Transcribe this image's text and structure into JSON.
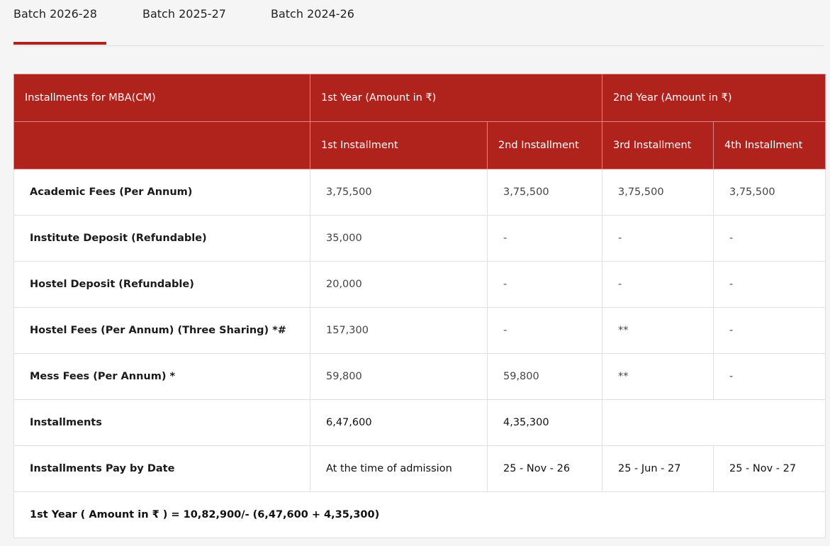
{
  "tabs": [
    {
      "label": "Batch 2026-28",
      "active": true
    },
    {
      "label": "Batch 2025-27"
    },
    {
      "label": "Batch 2024-26"
    }
  ],
  "accent": "#b0231d",
  "table": {
    "corner": "Installments for MBA(CM)",
    "year1": "1st Year (Amount in ₹)",
    "year2": "2nd Year (Amount in ₹)",
    "installments": [
      "1st Installment",
      "2nd Installment",
      "3rd Installment",
      "4th Installment"
    ],
    "rows": [
      {
        "label": "Academic Fees (Per Annum)",
        "values": [
          "3,75,500",
          "3,75,500",
          "3,75,500",
          "3,75,500"
        ]
      },
      {
        "label": "Institute Deposit (Refundable)",
        "values": [
          "35,000",
          "-",
          "-",
          "-"
        ]
      },
      {
        "label": "Hostel Deposit (Refundable)",
        "values": [
          "20,000",
          "-",
          "-",
          "-"
        ]
      },
      {
        "label": "Hostel Fees (Per Annum) (Three Sharing) *#",
        "values": [
          "157,300",
          "-",
          "**",
          "-"
        ]
      },
      {
        "label": "Mess Fees (Per Annum) *",
        "values": [
          "59,800",
          "59,800",
          "**",
          "-"
        ]
      }
    ],
    "totals": {
      "label": "Installments",
      "values": [
        "6,47,600",
        "4,35,300"
      ]
    },
    "dates": {
      "label": "Installments Pay by Date",
      "values": [
        "At the time of admission",
        "25 - Nov - 26",
        "25 - Jun - 27",
        "25 - Nov - 27"
      ]
    },
    "footer": "1st Year ( Amount in ₹ ) = 10,82,900/- (6,47,600 + 4,35,300)"
  }
}
